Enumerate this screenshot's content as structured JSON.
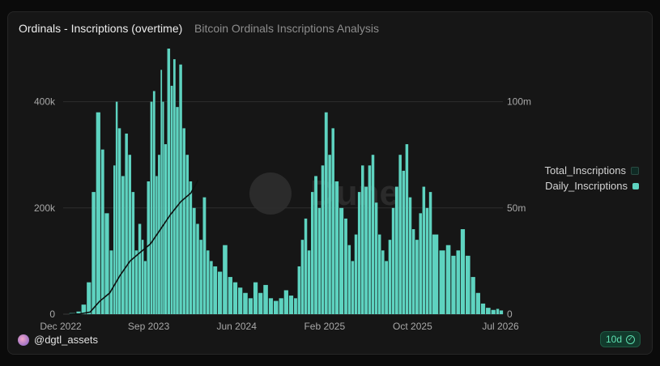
{
  "header": {
    "title": "Ordinals - Inscriptions (overtime)",
    "subtitle": "Bitcoin Ordinals Inscriptions Analysis"
  },
  "legend": {
    "placement": "right",
    "items": [
      {
        "label": "Total_Inscriptions",
        "color": "#0f2a24"
      },
      {
        "label": "Daily_Inscriptions",
        "color": "#5ed3c0"
      }
    ]
  },
  "footer": {
    "author": "@dgtl_assets",
    "badge": "10d"
  },
  "watermark": "Dune",
  "chart_data": {
    "type": "bar",
    "x_axis": {
      "ticks": [
        "Dec 2022",
        "Sep 2023",
        "Jun 2024",
        "Feb 2025",
        "Oct 2025",
        "Jul 2026"
      ],
      "range": [
        "2022-12-01",
        "2026-07-15"
      ]
    },
    "y_left": {
      "ticks": [
        "0",
        "200k",
        "400k"
      ],
      "range": [
        0,
        500000
      ]
    },
    "y_right": {
      "ticks": [
        "0",
        "50m",
        "100m"
      ],
      "range": [
        0,
        125000000
      ]
    },
    "grid": true,
    "series": [
      {
        "name": "Daily_Inscriptions",
        "type": "bar",
        "axis": "left",
        "color": "#5ed3c0",
        "points": [
          [
            "2022-12-20",
            2000
          ],
          [
            "2023-01-10",
            5000
          ],
          [
            "2023-01-25",
            18000
          ],
          [
            "2023-02-10",
            60000
          ],
          [
            "2023-02-25",
            230000
          ],
          [
            "2023-03-10",
            380000
          ],
          [
            "2023-03-25",
            310000
          ],
          [
            "2023-04-05",
            190000
          ],
          [
            "2023-04-20",
            120000
          ],
          [
            "2023-05-01",
            280000
          ],
          [
            "2023-05-08",
            400000
          ],
          [
            "2023-05-15",
            350000
          ],
          [
            "2023-05-25",
            260000
          ],
          [
            "2023-06-05",
            340000
          ],
          [
            "2023-06-15",
            300000
          ],
          [
            "2023-06-25",
            230000
          ],
          [
            "2023-07-05",
            120000
          ],
          [
            "2023-07-15",
            170000
          ],
          [
            "2023-07-25",
            140000
          ],
          [
            "2023-08-01",
            100000
          ],
          [
            "2023-08-10",
            250000
          ],
          [
            "2023-08-20",
            400000
          ],
          [
            "2023-08-28",
            420000
          ],
          [
            "2023-09-05",
            260000
          ],
          [
            "2023-09-12",
            300000
          ],
          [
            "2023-09-20",
            460000
          ],
          [
            "2023-09-25",
            400000
          ],
          [
            "2023-10-01",
            320000
          ],
          [
            "2023-10-10",
            500000
          ],
          [
            "2023-10-20",
            430000
          ],
          [
            "2023-10-28",
            480000
          ],
          [
            "2023-11-05",
            390000
          ],
          [
            "2023-11-15",
            470000
          ],
          [
            "2023-11-25",
            350000
          ],
          [
            "2023-12-05",
            300000
          ],
          [
            "2023-12-15",
            250000
          ],
          [
            "2023-12-25",
            200000
          ],
          [
            "2024-01-05",
            170000
          ],
          [
            "2024-01-15",
            140000
          ],
          [
            "2024-01-25",
            220000
          ],
          [
            "2024-02-05",
            120000
          ],
          [
            "2024-02-15",
            100000
          ],
          [
            "2024-02-25",
            90000
          ],
          [
            "2024-03-10",
            80000
          ],
          [
            "2024-03-25",
            130000
          ],
          [
            "2024-04-10",
            70000
          ],
          [
            "2024-04-25",
            60000
          ],
          [
            "2024-05-10",
            50000
          ],
          [
            "2024-05-25",
            40000
          ],
          [
            "2024-06-10",
            30000
          ],
          [
            "2024-06-25",
            60000
          ],
          [
            "2024-07-10",
            40000
          ],
          [
            "2024-07-25",
            55000
          ],
          [
            "2024-08-10",
            30000
          ],
          [
            "2024-08-25",
            25000
          ],
          [
            "2024-09-10",
            30000
          ],
          [
            "2024-09-25",
            45000
          ],
          [
            "2024-10-10",
            35000
          ],
          [
            "2024-10-25",
            30000
          ],
          [
            "2024-11-05",
            90000
          ],
          [
            "2024-11-15",
            140000
          ],
          [
            "2024-11-25",
            180000
          ],
          [
            "2024-12-05",
            120000
          ],
          [
            "2024-12-15",
            230000
          ],
          [
            "2024-12-25",
            260000
          ],
          [
            "2025-01-05",
            200000
          ],
          [
            "2025-01-15",
            280000
          ],
          [
            "2025-01-25",
            380000
          ],
          [
            "2025-02-05",
            300000
          ],
          [
            "2025-02-15",
            350000
          ],
          [
            "2025-02-25",
            250000
          ],
          [
            "2025-03-10",
            200000
          ],
          [
            "2025-03-25",
            180000
          ],
          [
            "2025-04-05",
            130000
          ],
          [
            "2025-04-15",
            100000
          ],
          [
            "2025-04-25",
            150000
          ],
          [
            "2025-05-05",
            230000
          ],
          [
            "2025-05-15",
            280000
          ],
          [
            "2025-05-25",
            240000
          ],
          [
            "2025-06-05",
            280000
          ],
          [
            "2025-06-15",
            300000
          ],
          [
            "2025-06-25",
            210000
          ],
          [
            "2025-07-05",
            150000
          ],
          [
            "2025-07-15",
            120000
          ],
          [
            "2025-07-25",
            100000
          ],
          [
            "2025-08-05",
            140000
          ],
          [
            "2025-08-15",
            200000
          ],
          [
            "2025-08-25",
            240000
          ],
          [
            "2025-09-05",
            300000
          ],
          [
            "2025-09-15",
            270000
          ],
          [
            "2025-09-25",
            320000
          ],
          [
            "2025-10-05",
            220000
          ],
          [
            "2025-10-15",
            160000
          ],
          [
            "2025-10-25",
            140000
          ],
          [
            "2025-11-05",
            190000
          ],
          [
            "2025-11-15",
            240000
          ],
          [
            "2025-11-25",
            200000
          ],
          [
            "2025-12-05",
            230000
          ],
          [
            "2025-12-15",
            150000
          ],
          [
            "2026-01-05",
            120000
          ],
          [
            "2026-01-25",
            130000
          ],
          [
            "2026-02-10",
            110000
          ],
          [
            "2026-02-25",
            120000
          ],
          [
            "2026-03-10",
            160000
          ],
          [
            "2026-03-25",
            110000
          ],
          [
            "2026-04-10",
            70000
          ],
          [
            "2026-04-25",
            40000
          ],
          [
            "2026-05-10",
            20000
          ],
          [
            "2026-05-25",
            12000
          ],
          [
            "2026-06-10",
            8000
          ],
          [
            "2026-06-25",
            10000
          ],
          [
            "2026-07-05",
            7000
          ]
        ]
      },
      {
        "name": "Total_Inscriptions",
        "type": "line",
        "axis": "right",
        "color": "#0d0f0e",
        "points": [
          [
            "2022-12-20",
            0
          ],
          [
            "2023-01-20",
            100000
          ],
          [
            "2023-02-20",
            1000000
          ],
          [
            "2023-03-20",
            6000000
          ],
          [
            "2023-04-20",
            10000000
          ],
          [
            "2023-05-20",
            18000000
          ],
          [
            "2023-06-20",
            25000000
          ],
          [
            "2023-07-20",
            29000000
          ],
          [
            "2023-08-20",
            33000000
          ],
          [
            "2023-09-20",
            40000000
          ],
          [
            "2023-10-20",
            47000000
          ],
          [
            "2023-11-20",
            53000000
          ],
          [
            "2023-12-20",
            57000000
          ],
          [
            "2024-01-10",
            63000000
          ]
        ]
      }
    ]
  }
}
